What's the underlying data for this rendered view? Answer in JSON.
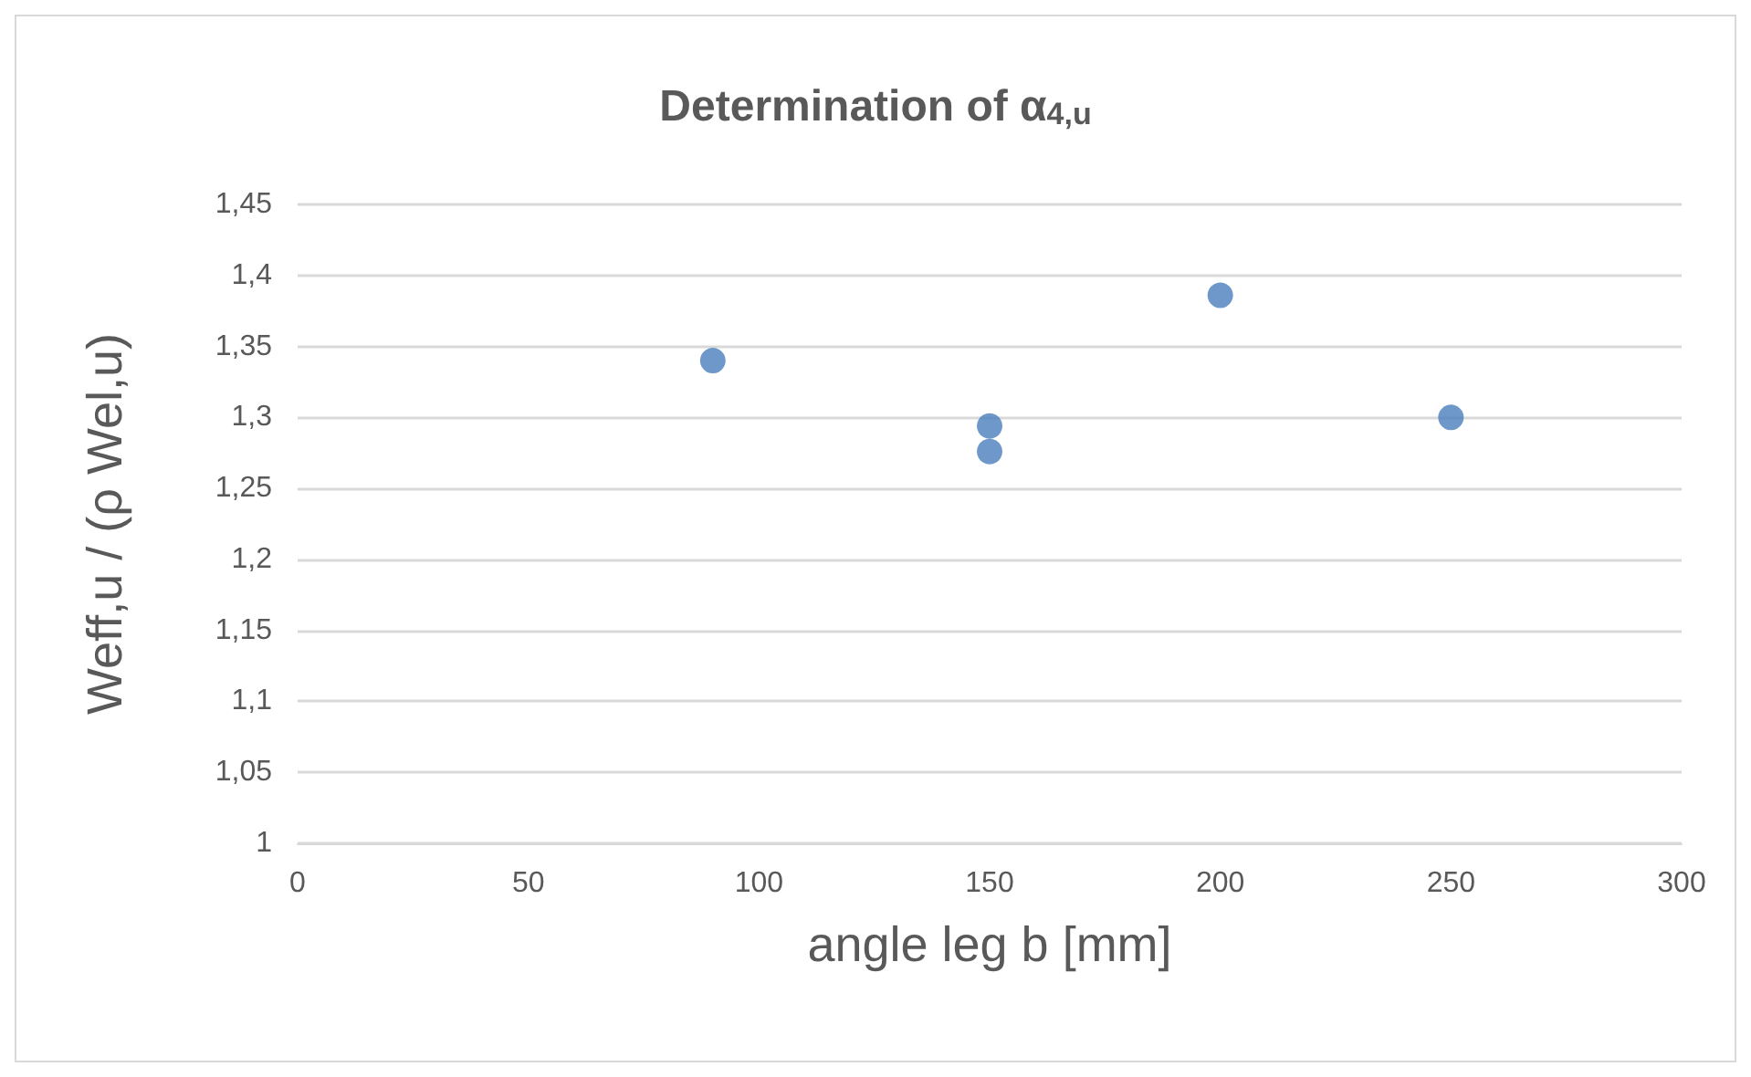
{
  "chart_data": {
    "type": "scatter",
    "title": "Determination of α$_{4,u}$",
    "xlabel": "angle leg b [mm]",
    "ylabel": "Weff,u / (ρ Wel,u)",
    "x": [
      90,
      150,
      150,
      200,
      250
    ],
    "values": [
      1.34,
      1.294,
      1.276,
      1.386,
      1.3
    ],
    "color": "#4a7ebb",
    "marker": "circle",
    "xlim": [
      0,
      300
    ],
    "xticks": [
      0,
      50,
      100,
      150,
      200,
      250,
      300
    ],
    "ylim": [
      1,
      1.45
    ],
    "yticks": [
      {
        "value": 1,
        "label": "1"
      },
      {
        "value": 1.05,
        "label": "1,05"
      },
      {
        "value": 1.1,
        "label": "1,1"
      },
      {
        "value": 1.15,
        "label": "1,15"
      },
      {
        "value": 1.2,
        "label": "1,2"
      },
      {
        "value": 1.25,
        "label": "1,25"
      },
      {
        "value": 1.3,
        "label": "1,3"
      },
      {
        "value": 1.35,
        "label": "1,35"
      },
      {
        "value": 1.4,
        "label": "1,4"
      },
      {
        "value": 1.45,
        "label": "1,45"
      }
    ],
    "grid": "y"
  }
}
